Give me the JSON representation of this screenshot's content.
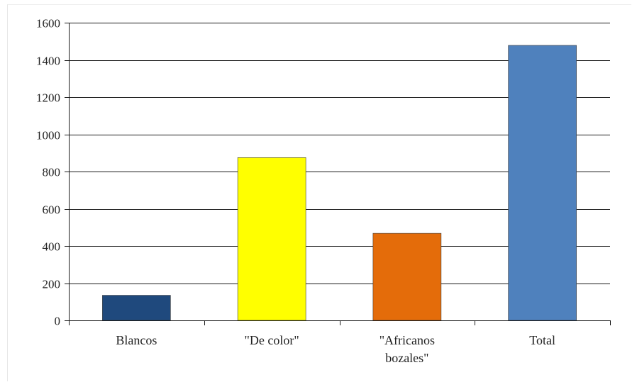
{
  "chart_data": {
    "type": "bar",
    "title": "",
    "xlabel": "",
    "ylabel": "",
    "categories": [
      [
        "Blancos"
      ],
      [
        "\"De color\""
      ],
      [
        "\"Africanos",
        "bozales\""
      ],
      [
        "Total"
      ]
    ],
    "values": [
      135,
      875,
      468,
      1478
    ],
    "colors": [
      "#1f497d",
      "#ffff00",
      "#e46c0a",
      "#4f81bd"
    ],
    "ylim": [
      0,
      1600
    ],
    "yticks": [
      0,
      200,
      400,
      600,
      800,
      1000,
      1200,
      1400,
      1600
    ],
    "grid": true,
    "legend": "none"
  }
}
